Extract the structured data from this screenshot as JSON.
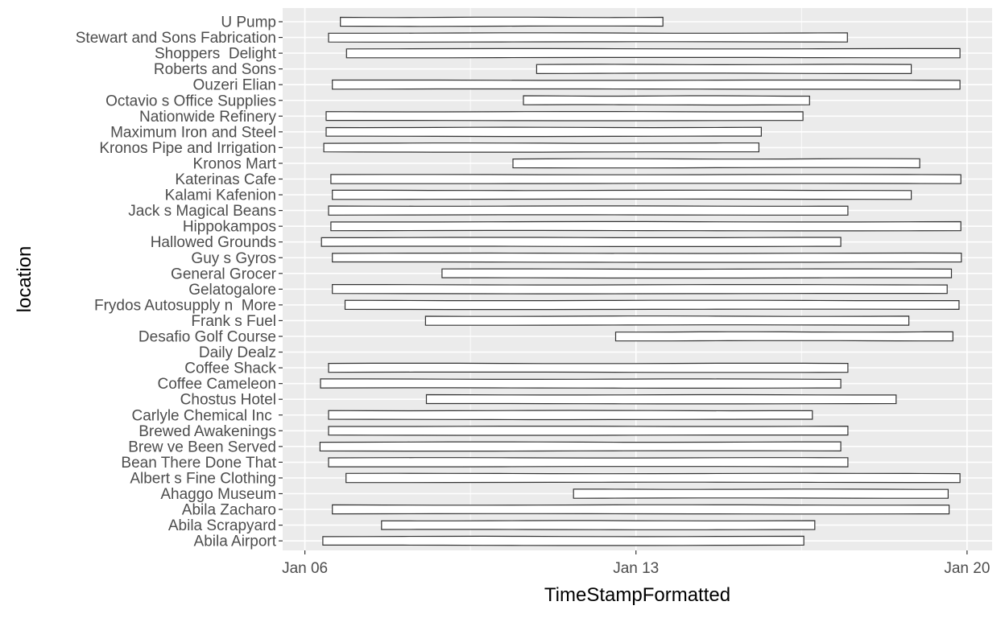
{
  "chart_data": {
    "type": "violin",
    "xlabel": "TimeStampFormatted",
    "ylabel": "location",
    "x_ticks": [
      {
        "label": "Jan 06",
        "value": 0
      },
      {
        "label": "Jan 13",
        "value": 7
      },
      {
        "label": "Jan 20",
        "value": 14
      }
    ],
    "x_unit": "days since Jan 06",
    "xlim": [
      -0.47,
      14.53
    ],
    "grid": true,
    "panel_background": "#ebebeb",
    "grid_color": "#ffffff",
    "outline_color": "#333333",
    "fill_color": "#ffffff",
    "categories": [
      "U Pump",
      "Stewart and Sons Fabrication",
      "Shoppers  Delight",
      "Roberts and Sons",
      "Ouzeri Elian",
      "Octavio s Office Supplies",
      "Nationwide Refinery",
      "Maximum Iron and Steel",
      "Kronos Pipe and Irrigation",
      "Kronos Mart",
      "Katerinas Cafe",
      "Kalami Kafenion",
      "Jack s Magical Beans",
      "Hippokampos",
      "Hallowed Grounds",
      "Guy s Gyros",
      "General Grocer",
      "Gelatogalore",
      "Frydos Autosupply n  More",
      "Frank s Fuel",
      "Desafio Golf Course",
      "Daily Dealz",
      "Coffee Shack",
      "Coffee Cameleon",
      "Chostus Hotel",
      "Carlyle Chemical Inc ",
      "Brewed Awakenings",
      "Brew ve Been Served",
      "Bean There Done That",
      "Albert s Fine Clothing",
      "Ahaggo Museum",
      "Abila Zacharo",
      "Abila Scrapyard",
      "Abila Airport"
    ],
    "series": [
      {
        "location": "U Pump",
        "min": 0.75,
        "max": 7.57
      },
      {
        "location": "Stewart and Sons Fabrication",
        "min": 0.5,
        "max": 11.47
      },
      {
        "location": "Shoppers  Delight",
        "min": 0.88,
        "max": 13.85
      },
      {
        "location": "Roberts and Sons",
        "min": 4.9,
        "max": 12.82
      },
      {
        "location": "Ouzeri Elian",
        "min": 0.58,
        "max": 13.85
      },
      {
        "location": "Octavio s Office Supplies",
        "min": 4.62,
        "max": 10.67
      },
      {
        "location": "Nationwide Refinery",
        "min": 0.45,
        "max": 10.53
      },
      {
        "location": "Maximum Iron and Steel",
        "min": 0.45,
        "max": 9.65
      },
      {
        "location": "Kronos Pipe and Irrigation",
        "min": 0.4,
        "max": 9.6
      },
      {
        "location": "Kronos Mart",
        "min": 4.4,
        "max": 13.0
      },
      {
        "location": "Katerinas Cafe",
        "min": 0.55,
        "max": 13.87
      },
      {
        "location": "Kalami Kafenion",
        "min": 0.58,
        "max": 12.82
      },
      {
        "location": "Jack s Magical Beans",
        "min": 0.5,
        "max": 11.48
      },
      {
        "location": "Hippokampos",
        "min": 0.55,
        "max": 13.87
      },
      {
        "location": "Hallowed Grounds",
        "min": 0.35,
        "max": 11.33
      },
      {
        "location": "Guy s Gyros",
        "min": 0.58,
        "max": 13.88
      },
      {
        "location": "General Grocer",
        "min": 2.9,
        "max": 13.67
      },
      {
        "location": "Gelatogalore",
        "min": 0.58,
        "max": 13.58
      },
      {
        "location": "Frydos Autosupply n  More",
        "min": 0.85,
        "max": 13.83
      },
      {
        "location": "Frank s Fuel",
        "min": 2.55,
        "max": 12.77
      },
      {
        "location": "Desafio Golf Course",
        "min": 6.57,
        "max": 13.7
      },
      {
        "location": "Daily Dealz",
        "min": null,
        "max": null
      },
      {
        "location": "Coffee Shack",
        "min": 0.5,
        "max": 11.48
      },
      {
        "location": "Coffee Cameleon",
        "min": 0.33,
        "max": 11.33
      },
      {
        "location": "Chostus Hotel",
        "min": 2.57,
        "max": 12.5
      },
      {
        "location": "Carlyle Chemical Inc ",
        "min": 0.5,
        "max": 10.73
      },
      {
        "location": "Brewed Awakenings",
        "min": 0.5,
        "max": 11.48
      },
      {
        "location": "Brew ve Been Served",
        "min": 0.32,
        "max": 11.33
      },
      {
        "location": "Bean There Done That",
        "min": 0.5,
        "max": 11.48
      },
      {
        "location": "Albert s Fine Clothing",
        "min": 0.87,
        "max": 13.85
      },
      {
        "location": "Ahaggo Museum",
        "min": 5.68,
        "max": 13.6
      },
      {
        "location": "Abila Zacharo",
        "min": 0.58,
        "max": 13.62
      },
      {
        "location": "Abila Scrapyard",
        "min": 1.62,
        "max": 10.78
      },
      {
        "location": "Abila Airport",
        "min": 0.38,
        "max": 10.55
      }
    ]
  }
}
